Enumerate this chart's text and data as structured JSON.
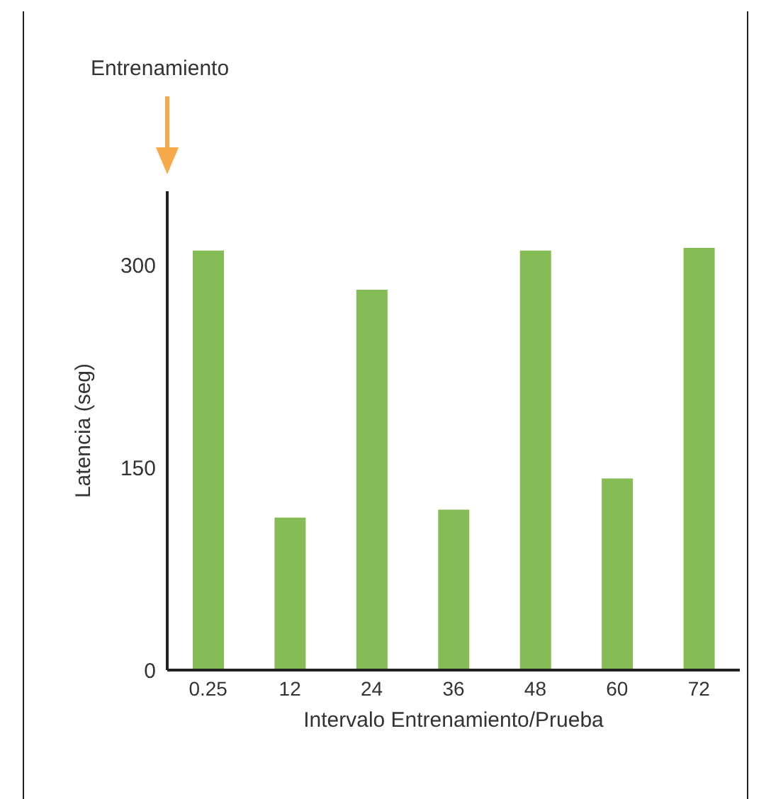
{
  "chart_data": {
    "type": "bar",
    "categories": [
      "0.25",
      "12",
      "24",
      "36",
      "48",
      "60",
      "72"
    ],
    "values": [
      311,
      113,
      282,
      119,
      311,
      142,
      313
    ],
    "color": "#86bc56",
    "ylim": [
      0,
      355
    ],
    "yticks": [
      0,
      150,
      300
    ],
    "xlabel": "Intervalo Entrenamiento/Prueba",
    "ylabel": "Latencia (seg)",
    "annotations": [
      "Entrenamiento"
    ],
    "grid": false
  }
}
